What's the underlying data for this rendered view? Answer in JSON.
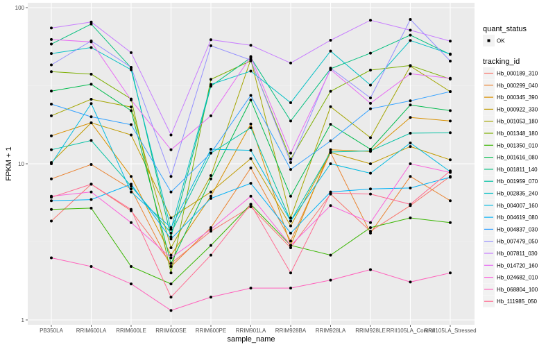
{
  "chart_data": {
    "type": "line",
    "title": "",
    "xlabel": "sample_name",
    "ylabel": "FPKM + 1",
    "yscale": "log10",
    "ylim": [
      1,
      100
    ],
    "yticks": [
      1,
      10,
      100
    ],
    "ytick_labels": [
      "1",
      "10",
      "100"
    ],
    "grid": true,
    "legend_position": "right",
    "categories": [
      "PB350LA",
      "RRIM600LA",
      "RRIM600LE",
      "RRIM600SE",
      "RRIM600PE",
      "RRIM901LA",
      "RRIM928BA",
      "RRIM928LA",
      "RRIM928LE",
      "RRII105LA_Control",
      "RRII105LA_Stressed"
    ],
    "shape_legend": {
      "title": "quant_status",
      "entries": [
        "OK"
      ]
    },
    "color_legend_title": "tracking_id",
    "series": [
      {
        "name": "Hb_000189_310",
        "color": "#F8766D",
        "values": [
          4.3,
          7.4,
          5.0,
          2.3,
          3.7,
          5.3,
          2.9,
          6.4,
          3.7,
          5.4,
          8.3
        ]
      },
      {
        "name": "Hb_000299_040",
        "color": "#EA8331",
        "values": [
          8.0,
          9.9,
          6.9,
          2.2,
          3.9,
          9.4,
          3.2,
          11.8,
          3.6,
          8.3,
          5.8
        ]
      },
      {
        "name": "Hb_000345_390",
        "color": "#D89000",
        "values": [
          15.1,
          18.3,
          8.3,
          2.6,
          6.2,
          18.0,
          3.0,
          12.3,
          12.0,
          19.8,
          18.8
        ]
      },
      {
        "name": "Hb_000922_330",
        "color": "#C09B00",
        "values": [
          10.2,
          18.3,
          15.3,
          4.5,
          6.6,
          10.8,
          4.0,
          11.8,
          10.0,
          12.9,
          10.6
        ]
      },
      {
        "name": "Hb_001053_180",
        "color": "#A3A500",
        "values": [
          20.3,
          25.9,
          23.1,
          2.9,
          8.4,
          46.6,
          4.5,
          23.2,
          14.7,
          42.2,
          29.0
        ]
      },
      {
        "name": "Hb_001348_180",
        "color": "#7CAE00",
        "values": [
          38.9,
          37.5,
          26.0,
          2.0,
          34.7,
          45.6,
          10.7,
          29.1,
          39.8,
          42.6,
          34.9
        ]
      },
      {
        "name": "Hb_001350_010",
        "color": "#39B600",
        "values": [
          5.1,
          5.2,
          2.2,
          1.7,
          3.0,
          5.5,
          3.0,
          2.6,
          3.9,
          4.5,
          4.2
        ]
      },
      {
        "name": "Hb_001616_080",
        "color": "#00BB4E",
        "values": [
          29.2,
          32.3,
          21.9,
          2.3,
          8.0,
          25.6,
          6.2,
          17.9,
          12.4,
          23.8,
          21.9
        ]
      },
      {
        "name": "Hb_001811_140",
        "color": "#00BF7D",
        "values": [
          58.4,
          78.5,
          41.2,
          3.4,
          31.4,
          47.8,
          18.8,
          40.6,
          51.1,
          66.7,
          50.1
        ]
      },
      {
        "name": "Hb_001959_070",
        "color": "#00C1A3",
        "values": [
          12.3,
          14.1,
          7.2,
          3.6,
          11.7,
          17.0,
          4.3,
          11.9,
          12.1,
          15.7,
          15.8
        ]
      },
      {
        "name": "Hb_002835_240",
        "color": "#00BFC4",
        "values": [
          50.8,
          55.5,
          40.0,
          3.8,
          32.2,
          39.2,
          24.6,
          52.7,
          31.9,
          61.6,
          50.5
        ]
      },
      {
        "name": "Hb_004007_160",
        "color": "#00BAE0",
        "values": [
          10.0,
          24.3,
          6.6,
          3.9,
          12.4,
          12.2,
          4.3,
          10.0,
          8.7,
          13.6,
          8.9
        ]
      },
      {
        "name": "Hb_004619_080",
        "color": "#00B0F6",
        "values": [
          5.8,
          5.9,
          7.4,
          3.3,
          6.0,
          7.5,
          3.6,
          6.6,
          6.9,
          7.0,
          8.2
        ]
      },
      {
        "name": "Hb_004837_030",
        "color": "#35A2FF",
        "values": [
          24.1,
          20.0,
          17.8,
          6.6,
          11.7,
          27.4,
          9.2,
          14.0,
          22.5,
          25.3,
          29.0
        ]
      },
      {
        "name": "Hb_007479_050",
        "color": "#9590FF",
        "values": [
          43.0,
          61.2,
          41.5,
          8.3,
          57.0,
          46.2,
          10.2,
          41.0,
          26.4,
          84.0,
          45.5
        ]
      },
      {
        "name": "Hb_007811_030",
        "color": "#C77CFF",
        "values": [
          74.0,
          80.9,
          51.5,
          15.3,
          62.3,
          57.4,
          44.2,
          61.8,
          83.1,
          71.7,
          61.0
        ]
      },
      {
        "name": "Hb_014720_160",
        "color": "#E76BF3",
        "values": [
          62.5,
          60.3,
          25.6,
          12.3,
          20.3,
          48.6,
          11.7,
          40.1,
          24.4,
          37.7,
          35.3
        ]
      },
      {
        "name": "Hb_024682_010",
        "color": "#FA62DB",
        "values": [
          6.2,
          6.6,
          4.2,
          2.5,
          3.8,
          6.2,
          3.0,
          5.4,
          4.2,
          10.0,
          8.8
        ]
      },
      {
        "name": "Hb_068804_100",
        "color": "#FF62BC",
        "values": [
          2.5,
          2.2,
          1.7,
          1.15,
          1.4,
          1.6,
          1.6,
          1.8,
          2.1,
          1.75,
          2.0
        ]
      },
      {
        "name": "Hb_111985_050",
        "color": "#FF6C91",
        "values": [
          6.1,
          7.4,
          5.1,
          1.4,
          2.6,
          5.5,
          2.0,
          6.5,
          6.4,
          5.5,
          9.0
        ]
      }
    ]
  }
}
